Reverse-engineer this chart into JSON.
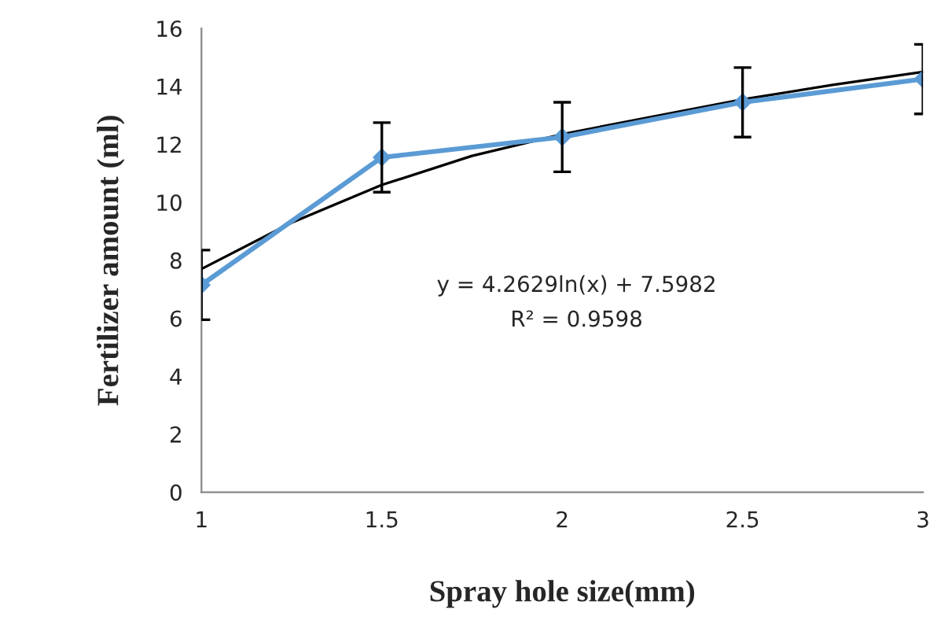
{
  "chart_data": {
    "type": "line",
    "xlabel": "Spray hole size(mm)",
    "ylabel": "Fertilizer amount (ml)",
    "x": [
      1,
      1.5,
      2,
      2.5,
      3
    ],
    "series": [
      {
        "color": "#5b9bd5",
        "values": [
          7.15,
          11.55,
          12.25,
          13.45,
          14.25
        ],
        "errors": [
          1.2,
          1.2,
          1.2,
          1.2,
          1.2
        ],
        "marker": "diamond"
      },
      {
        "type": "line",
        "color": "#000000",
        "x": [
          1,
          1.25,
          1.5,
          1.75,
          2,
          2.25,
          2.5,
          2.75,
          3
        ],
        "values": [
          7.7,
          9.3,
          10.6,
          11.6,
          12.35,
          12.95,
          13.55,
          14.05,
          14.5
        ],
        "marker": "none"
      }
    ],
    "annotations": [
      "y = 4.2629ln(x) + 7.5982",
      "R² = 0.9598"
    ],
    "xlim": [
      1,
      3
    ],
    "xticks": [
      1,
      1.5,
      2,
      2.5,
      3
    ],
    "ylim": [
      0,
      16
    ],
    "yticks": [
      0,
      2,
      4,
      6,
      8,
      10,
      12,
      14,
      16
    ],
    "grid": false,
    "legend": false
  }
}
